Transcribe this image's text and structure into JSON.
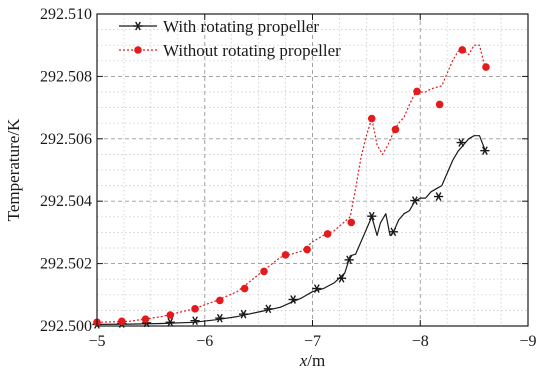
{
  "chart_data": {
    "type": "line",
    "title": "",
    "xlabel": "x/m",
    "ylabel": "Temperature/K",
    "xlim": [
      -5,
      -9
    ],
    "ylim": [
      292.5,
      292.51
    ],
    "x_ticks": [
      -5,
      -6,
      -7,
      -8,
      -9
    ],
    "x_tick_labels": [
      "−5",
      "−6",
      "−7",
      "−8",
      "−9"
    ],
    "y_ticks": [
      292.5,
      292.502,
      292.504,
      292.506,
      292.508,
      292.51
    ],
    "y_tick_labels": [
      "292.500",
      "292.502",
      "292.504",
      "292.506",
      "292.508",
      "292.510"
    ],
    "grid": true,
    "legend_position": "top-left",
    "series": [
      {
        "name": "With rotating propeller",
        "color": "#1a1a1a",
        "marker": "asterisk",
        "line_style": "solid",
        "markers": [
          {
            "x": -5.0,
            "y": 292.50005
          },
          {
            "x": -5.23,
            "y": 292.50008
          },
          {
            "x": -5.46,
            "y": 292.5001
          },
          {
            "x": -5.68,
            "y": 292.50012
          },
          {
            "x": -5.91,
            "y": 292.50017
          },
          {
            "x": -6.14,
            "y": 292.50025
          },
          {
            "x": -6.36,
            "y": 292.50038
          },
          {
            "x": -6.59,
            "y": 292.50055
          },
          {
            "x": -6.82,
            "y": 292.50085
          },
          {
            "x": -7.04,
            "y": 292.5012
          },
          {
            "x": -7.27,
            "y": 292.50153
          },
          {
            "x": -7.34,
            "y": 292.50212
          },
          {
            "x": -7.55,
            "y": 292.50352
          },
          {
            "x": -7.75,
            "y": 292.50302
          },
          {
            "x": -7.95,
            "y": 292.50402
          },
          {
            "x": -8.17,
            "y": 292.50415
          },
          {
            "x": -8.38,
            "y": 292.50588
          },
          {
            "x": -8.6,
            "y": 292.50562
          }
        ],
        "line": [
          [
            -5.0,
            292.50005
          ],
          [
            -5.3,
            292.50006
          ],
          [
            -5.6,
            292.50008
          ],
          [
            -5.9,
            292.50012
          ],
          [
            -6.1,
            292.5002
          ],
          [
            -6.3,
            292.5003
          ],
          [
            -6.5,
            292.50045
          ],
          [
            -6.7,
            292.5006
          ],
          [
            -6.8,
            292.50075
          ],
          [
            -6.9,
            292.5009
          ],
          [
            -7.0,
            292.5011
          ],
          [
            -7.1,
            292.5012
          ],
          [
            -7.2,
            292.50138
          ],
          [
            -7.3,
            292.5017
          ],
          [
            -7.35,
            292.50225
          ],
          [
            -7.4,
            292.5023
          ],
          [
            -7.45,
            292.5027
          ],
          [
            -7.5,
            292.5031
          ],
          [
            -7.55,
            292.5035
          ],
          [
            -7.6,
            292.5029
          ],
          [
            -7.63,
            292.5033
          ],
          [
            -7.68,
            292.5036
          ],
          [
            -7.72,
            292.5029
          ],
          [
            -7.75,
            292.503
          ],
          [
            -7.8,
            292.5034
          ],
          [
            -7.85,
            292.5036
          ],
          [
            -7.9,
            292.5037
          ],
          [
            -7.95,
            292.504
          ],
          [
            -8.0,
            292.5041
          ],
          [
            -8.05,
            292.5041
          ],
          [
            -8.1,
            292.5043
          ],
          [
            -8.15,
            292.5044
          ],
          [
            -8.2,
            292.5045
          ],
          [
            -8.25,
            292.5049
          ],
          [
            -8.3,
            292.5053
          ],
          [
            -8.35,
            292.5056
          ],
          [
            -8.4,
            292.5058
          ],
          [
            -8.45,
            292.506
          ],
          [
            -8.5,
            292.5061
          ],
          [
            -8.55,
            292.5061
          ],
          [
            -8.6,
            292.50565
          ]
        ]
      },
      {
        "name": "Without rotating propeller",
        "color": "#e41a1c",
        "marker": "filled-circle",
        "line_style": "dotted",
        "markers": [
          {
            "x": -5.0,
            "y": 292.50012
          },
          {
            "x": -5.23,
            "y": 292.50015
          },
          {
            "x": -5.45,
            "y": 292.50022
          },
          {
            "x": -5.68,
            "y": 292.50035
          },
          {
            "x": -5.91,
            "y": 292.50055
          },
          {
            "x": -6.14,
            "y": 292.50082
          },
          {
            "x": -6.37,
            "y": 292.5012
          },
          {
            "x": -6.55,
            "y": 292.50175
          },
          {
            "x": -6.75,
            "y": 292.50228
          },
          {
            "x": -6.95,
            "y": 292.50245
          },
          {
            "x": -7.14,
            "y": 292.50295
          },
          {
            "x": -7.36,
            "y": 292.50332
          },
          {
            "x": -7.55,
            "y": 292.50665
          },
          {
            "x": -7.77,
            "y": 292.5063
          },
          {
            "x": -7.97,
            "y": 292.50752
          },
          {
            "x": -8.18,
            "y": 292.5071
          },
          {
            "x": -8.39,
            "y": 292.50885
          },
          {
            "x": -8.61,
            "y": 292.5083
          }
        ],
        "line": [
          [
            -5.0,
            292.50012
          ],
          [
            -5.3,
            292.50015
          ],
          [
            -5.6,
            292.5003
          ],
          [
            -5.9,
            292.50055
          ],
          [
            -6.1,
            292.5008
          ],
          [
            -6.3,
            292.5011
          ],
          [
            -6.5,
            292.50165
          ],
          [
            -6.7,
            292.5022
          ],
          [
            -6.9,
            292.5024
          ],
          [
            -7.0,
            292.5027
          ],
          [
            -7.1,
            292.5029
          ],
          [
            -7.2,
            292.50305
          ],
          [
            -7.3,
            292.50335
          ],
          [
            -7.35,
            292.5035
          ],
          [
            -7.4,
            292.5044
          ],
          [
            -7.45,
            292.5054
          ],
          [
            -7.5,
            292.5061
          ],
          [
            -7.55,
            292.50665
          ],
          [
            -7.6,
            292.5058
          ],
          [
            -7.65,
            292.5055
          ],
          [
            -7.7,
            292.5058
          ],
          [
            -7.75,
            292.5062
          ],
          [
            -7.8,
            292.5065
          ],
          [
            -7.85,
            292.5067
          ],
          [
            -7.9,
            292.5071
          ],
          [
            -7.95,
            292.50745
          ],
          [
            -8.0,
            292.5075
          ],
          [
            -8.05,
            292.5075
          ],
          [
            -8.1,
            292.5076
          ],
          [
            -8.15,
            292.50765
          ],
          [
            -8.2,
            292.5077
          ],
          [
            -8.25,
            292.5081
          ],
          [
            -8.3,
            292.5085
          ],
          [
            -8.35,
            292.5088
          ],
          [
            -8.4,
            292.50885
          ],
          [
            -8.45,
            292.5087
          ],
          [
            -8.5,
            292.509
          ],
          [
            -8.55,
            292.509
          ],
          [
            -8.6,
            292.5083
          ]
        ]
      }
    ]
  }
}
